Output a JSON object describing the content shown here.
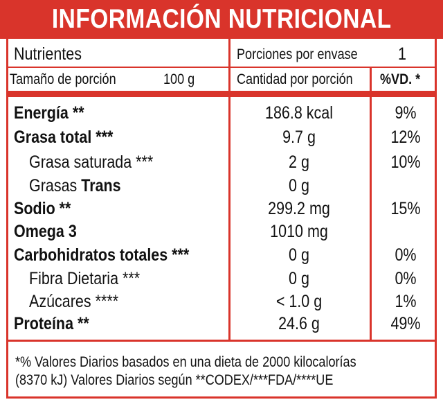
{
  "title": "INFORMACIÓN NUTRICIONAL",
  "header": {
    "nutrients_label": "Nutrientes",
    "servings_label": "Porciones por envase",
    "servings_value": "1",
    "serving_size_label": "Tamaño de porción",
    "serving_size_value": "100 g",
    "amount_label": "Cantidad por porción",
    "dv_label": "%VD. *"
  },
  "rows": [
    {
      "pre": "Energía **",
      "bold": "",
      "value": "186.8 kcal",
      "dv": "9%"
    },
    {
      "pre": "Grasa total ***",
      "bold": "",
      "value": "9.7 g",
      "dv": "12%"
    },
    {
      "pre": "Grasa saturada ***",
      "bold": "",
      "value": "2 g",
      "dv": "10%"
    },
    {
      "pre": "Grasas ",
      "bold": "Trans",
      "value": "0 g",
      "dv": ""
    },
    {
      "pre": "Sodio **",
      "bold": "",
      "value": "299.2 mg",
      "dv": "15%"
    },
    {
      "pre": "Omega 3",
      "bold": "",
      "value": "1010 mg",
      "dv": ""
    },
    {
      "pre": "Carbohidratos totales ***",
      "bold": "",
      "value": "0 g",
      "dv": "0%"
    },
    {
      "pre": "Fibra Dietaria ***",
      "bold": "",
      "value": "0 g",
      "dv": "0%"
    },
    {
      "pre": "Azúcares ****",
      "bold": "",
      "value": "< 1.0 g",
      "dv": "1%"
    },
    {
      "pre": "Proteína **",
      "bold": "",
      "value": "24.6 g",
      "dv": "49%"
    }
  ],
  "footnote": {
    "line1": "*% Valores Diarios basados en una dieta de 2000 kilocalorías",
    "line2": "(8370 kJ) Valores Diarios según **CODEX/***FDA/****UE"
  },
  "colors": {
    "accent": "#d9342b"
  }
}
